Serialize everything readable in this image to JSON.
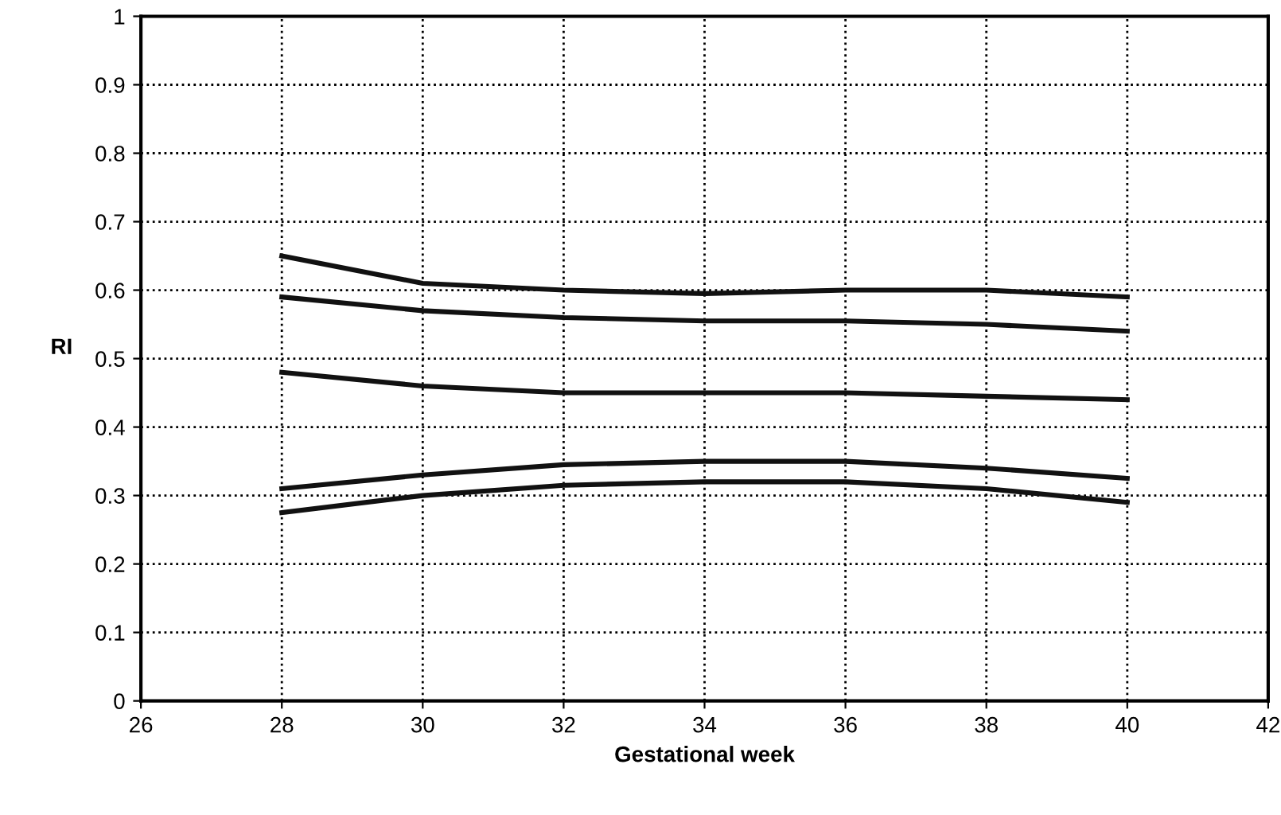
{
  "chart_data": {
    "type": "line",
    "xlabel": "Gestational week",
    "ylabel": "RI",
    "x": [
      28,
      30,
      32,
      34,
      36,
      38,
      40
    ],
    "series": [
      {
        "color": "#111111",
        "values": [
          0.65,
          0.61,
          0.6,
          0.595,
          0.6,
          0.6,
          0.59
        ]
      },
      {
        "color": "#111111",
        "values": [
          0.59,
          0.57,
          0.56,
          0.555,
          0.555,
          0.55,
          0.54
        ]
      },
      {
        "color": "#111111",
        "values": [
          0.48,
          0.46,
          0.45,
          0.45,
          0.45,
          0.445,
          0.44
        ]
      },
      {
        "color": "#111111",
        "values": [
          0.31,
          0.33,
          0.345,
          0.35,
          0.35,
          0.34,
          0.325
        ]
      },
      {
        "color": "#111111",
        "values": [
          0.275,
          0.3,
          0.315,
          0.32,
          0.32,
          0.31,
          0.29
        ]
      }
    ],
    "xlim": [
      26,
      42
    ],
    "xticks": [
      26,
      28,
      30,
      32,
      34,
      36,
      38,
      40,
      42
    ],
    "ylim": [
      0,
      1
    ],
    "yticks": [
      0,
      0.1,
      0.2,
      0.3,
      0.4,
      0.5,
      0.6,
      0.7,
      0.8,
      0.9,
      1
    ],
    "grid": true,
    "legend": false,
    "marker": "none",
    "line_style": "solid"
  }
}
